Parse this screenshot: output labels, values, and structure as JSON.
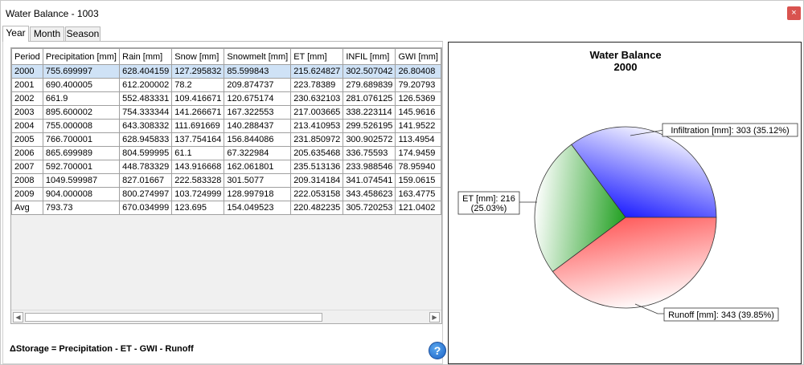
{
  "window": {
    "title": "Water Balance - 1003",
    "close_glyph": "×"
  },
  "tabs": [
    {
      "label": "Year",
      "active": true
    },
    {
      "label": "Month",
      "active": false
    },
    {
      "label": "Season",
      "active": false
    }
  ],
  "table": {
    "columns": [
      "Period",
      "Precipitation [mm]",
      "Rain [mm]",
      "Snow [mm]",
      "Snowmelt [mm]",
      "ET [mm]",
      "INFIL [mm]",
      "GWI [mm]"
    ],
    "rows": [
      [
        "2000",
        "755.699997",
        "628.404159",
        "127.295832",
        "85.599843",
        "215.624827",
        "302.507042",
        "26.80408"
      ],
      [
        "2001",
        "690.400005",
        "612.200002",
        "78.2",
        "209.874737",
        "223.78389",
        "279.689839",
        "79.20793"
      ],
      [
        "2002",
        "661.9",
        "552.483331",
        "109.416671",
        "120.675174",
        "230.632103",
        "281.076125",
        "126.5369"
      ],
      [
        "2003",
        "895.600002",
        "754.333344",
        "141.266671",
        "167.322553",
        "217.003665",
        "338.223114",
        "145.9616"
      ],
      [
        "2004",
        "755.000008",
        "643.308332",
        "111.691669",
        "140.288437",
        "213.410953",
        "299.526195",
        "141.9522"
      ],
      [
        "2005",
        "766.700001",
        "628.945833",
        "137.754164",
        "156.844086",
        "231.850972",
        "300.902572",
        "113.4954"
      ],
      [
        "2006",
        "865.699989",
        "804.599995",
        "61.1",
        "67.322984",
        "205.635468",
        "336.75593",
        "174.9459"
      ],
      [
        "2007",
        "592.700001",
        "448.783329",
        "143.916668",
        "162.061801",
        "235.513136",
        "233.988546",
        "78.95940"
      ],
      [
        "2008",
        "1049.599987",
        "827.01667",
        "222.583328",
        "301.5077",
        "209.314184",
        "341.074541",
        "159.0615"
      ],
      [
        "2009",
        "904.000008",
        "800.274997",
        "103.724999",
        "128.997918",
        "222.053158",
        "343.458623",
        "163.4775"
      ],
      [
        "Avg",
        "793.73",
        "670.034999",
        "123.695",
        "154.049523",
        "220.482235",
        "305.720253",
        "121.0402"
      ]
    ],
    "scroll_left": "◀",
    "scroll_right": "▶"
  },
  "formula": "ΔStorage = Precipitation - ET - GWI - Runoff",
  "help": {
    "glyph": "?",
    "icon": "help-icon"
  },
  "colors": {
    "infiltration": "#1f1fff",
    "et": "#22a022",
    "runoff": "#ff5c5c",
    "selected_row": "#cfe2f6",
    "close": "#d9534f"
  },
  "chart_data": {
    "type": "pie",
    "title": "Water Balance",
    "subtitle": "2000",
    "slices": [
      {
        "label": "Infiltration [mm]: 303 (35.12%)",
        "value": 303,
        "percent": 35.12,
        "color": "#1f1fff"
      },
      {
        "label": "Runoff [mm]: 343 (39.85%)",
        "value": 343,
        "percent": 39.85,
        "color": "#ff5c5c"
      },
      {
        "label_line1": "ET [mm]: 216",
        "label_line2": "(25.03%)",
        "value": 216,
        "percent": 25.03,
        "color": "#22a022"
      }
    ],
    "legend": "none"
  }
}
